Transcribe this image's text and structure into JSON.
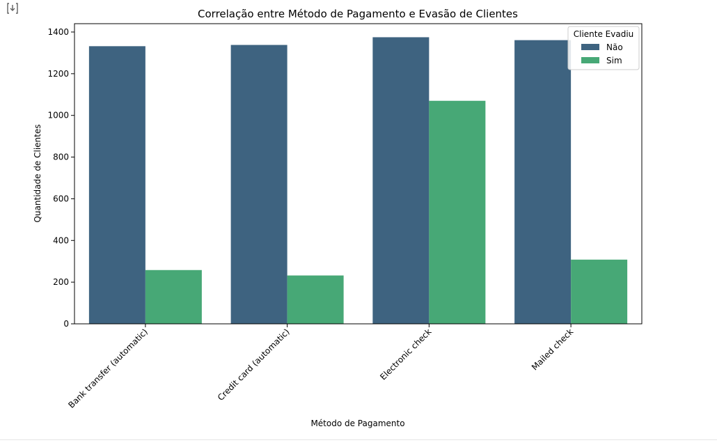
{
  "toolbar": {
    "output_icon": "cell-output-icon"
  },
  "chart_data": {
    "type": "bar",
    "title": "Correlação entre Método de Pagamento e Evasão de Clientes",
    "xlabel": "Método de Pagamento",
    "ylabel": "Quantidade de Clientes",
    "categories": [
      "Bank transfer (automatic)",
      "Credit card (automatic)",
      "Electronic check",
      "Mailed check"
    ],
    "series": [
      {
        "name": "Não",
        "color": "#3e6380",
        "values": [
          1332,
          1338,
          1375,
          1361
        ]
      },
      {
        "name": "Sim",
        "color": "#47a876",
        "values": [
          258,
          232,
          1070,
          308
        ]
      }
    ],
    "ylim": [
      0,
      1400
    ],
    "yticks": [
      0,
      200,
      400,
      600,
      800,
      1000,
      1200,
      1400
    ],
    "grid": false,
    "legend": {
      "title": "Cliente Evadiu",
      "placement": "top-right"
    }
  }
}
